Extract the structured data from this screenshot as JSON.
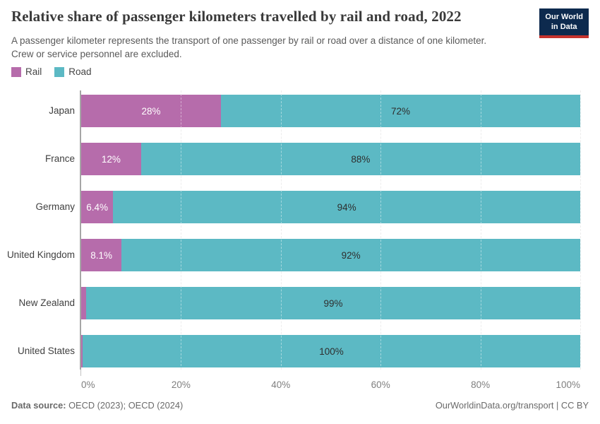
{
  "header": {
    "title": "Relative share of passenger kilometers travelled by rail and road, 2022",
    "subtitle": "A passenger kilometer represents the transport of one passenger by rail or road over a distance of one kilometer. Crew or service personnel are excluded.",
    "logo": {
      "line1": "Our World",
      "line2": "in Data",
      "bg_color": "#0d2a4e",
      "accent_color": "#c5332d"
    }
  },
  "legend": {
    "items": [
      {
        "label": "Rail",
        "color": "#b66cab"
      },
      {
        "label": "Road",
        "color": "#5cb9c4"
      }
    ]
  },
  "chart_data": {
    "type": "bar",
    "variant": "stacked-horizontal",
    "title": "Relative share of passenger kilometers travelled by rail and road, 2022",
    "categories": [
      "Japan",
      "France",
      "Germany",
      "United Kingdom",
      "New Zealand",
      "United States"
    ],
    "series": [
      {
        "name": "Rail",
        "color": "#b66cab",
        "label_color": "#ffffff",
        "values": [
          28,
          12,
          6.4,
          8.1,
          1,
          0.3
        ],
        "value_labels": [
          "28%",
          "12%",
          "6.4%",
          "8.1%",
          "",
          ""
        ]
      },
      {
        "name": "Road",
        "color": "#5cb9c4",
        "label_color": "#2e2e2e",
        "values": [
          72,
          88,
          93.6,
          91.9,
          99,
          99.7
        ],
        "value_labels": [
          "72%",
          "88%",
          "94%",
          "92%",
          "99%",
          "100%"
        ]
      }
    ],
    "xlim": [
      0,
      100
    ],
    "x_ticks": [
      {
        "value": 0,
        "label": "0%"
      },
      {
        "value": 20,
        "label": "20%"
      },
      {
        "value": 40,
        "label": "40%"
      },
      {
        "value": 60,
        "label": "60%"
      },
      {
        "value": 80,
        "label": "80%"
      },
      {
        "value": 100,
        "label": "100%"
      }
    ],
    "grid": "vertical-dashed",
    "legend_position": "top-left"
  },
  "footer": {
    "source_label": "Data source:",
    "source_text": "OECD (2023); OECD (2024)",
    "credit": "OurWorldinData.org/transport | CC BY"
  }
}
